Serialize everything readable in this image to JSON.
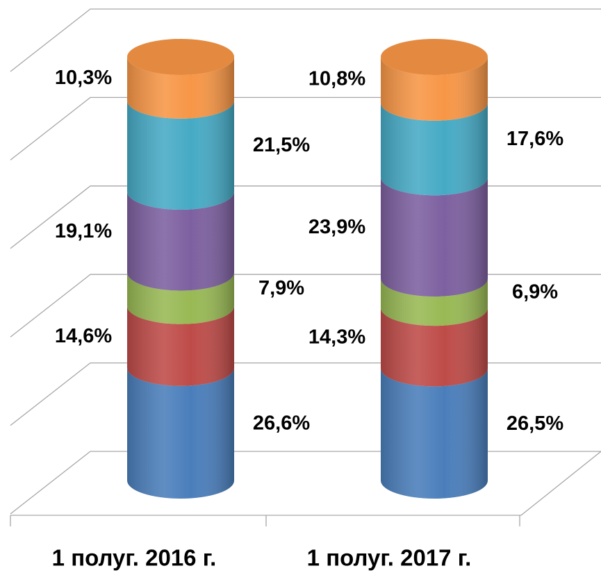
{
  "chart_data": {
    "type": "bar3d-stacked-cylinder",
    "categories": [
      "1 полуг. 2016 г.",
      "1 полуг. 2017 г."
    ],
    "series": [
      {
        "color": "#4a7ebb",
        "values": [
          26.6,
          26.5
        ],
        "value_labels": [
          "26,6%",
          "26,5%"
        ]
      },
      {
        "color": "#be4b48",
        "values": [
          14.6,
          14.3
        ],
        "value_labels": [
          "14,6%",
          "14,3%"
        ]
      },
      {
        "color": "#98b954",
        "values": [
          7.9,
          6.9
        ],
        "value_labels": [
          "7,9%",
          "6,9%"
        ]
      },
      {
        "color": "#7d60a0",
        "values": [
          19.1,
          23.9
        ],
        "value_labels": [
          "19,1%",
          "23,9%"
        ]
      },
      {
        "color": "#46aac5",
        "values": [
          21.5,
          17.6
        ],
        "value_labels": [
          "21,5%",
          "17,6%"
        ]
      },
      {
        "color": "#f79646",
        "values": [
          10.3,
          10.8
        ],
        "value_labels": [
          "10,3%",
          "10,8%"
        ]
      }
    ],
    "ylim": [
      0,
      100
    ],
    "yticks": [
      0,
      20,
      40,
      60,
      80,
      100
    ],
    "grid": true
  }
}
